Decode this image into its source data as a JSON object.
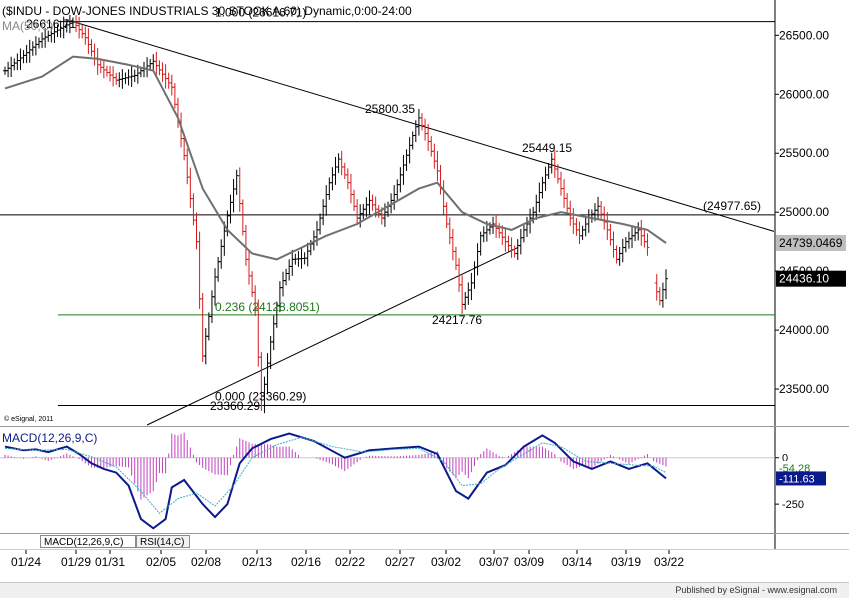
{
  "chart_data": [
    {
      "type": "candlestick",
      "title": "($INDU - DOW-JONES INDUSTRIALS 30 STOCK A,60) Dynamic,0:00-24:00",
      "indicator_label": "MA(50,C)",
      "copyright": "© eSignal, 2011",
      "ylim": [
        23195,
        26715
      ],
      "y_ticks": [
        "26500.00",
        "26000.00",
        "25500.00",
        "25000.00",
        "24500.00",
        "24000.00",
        "23500.00"
      ],
      "x_ticks": [
        "01/24",
        "01/29",
        "01/31",
        "02/05",
        "02/08",
        "02/13",
        "02/16",
        "02/22",
        "02/27",
        "03/02",
        "03/07",
        "03/09",
        "03/14",
        "03/19",
        "03/22"
      ],
      "price_path": [
        [
          0,
          26200
        ],
        [
          6,
          26330
        ],
        [
          12,
          26470
        ],
        [
          18,
          26560
        ],
        [
          22,
          26616.71
        ],
        [
          26,
          26480
        ],
        [
          30,
          26250
        ],
        [
          36,
          26120
        ],
        [
          42,
          26160
        ],
        [
          48,
          26280
        ],
        [
          54,
          26060
        ],
        [
          58,
          25480
        ],
        [
          62,
          24750
        ],
        [
          64,
          23780
        ],
        [
          68,
          24450
        ],
        [
          72,
          24970
        ],
        [
          75,
          25310
        ],
        [
          78,
          24600
        ],
        [
          81,
          24180
        ],
        [
          83,
          23360.29
        ],
        [
          86,
          23900
        ],
        [
          89,
          24360
        ],
        [
          93,
          24600
        ],
        [
          97,
          24610
        ],
        [
          101,
          24850
        ],
        [
          105,
          25250
        ],
        [
          108,
          25450
        ],
        [
          111,
          25250
        ],
        [
          114,
          24950
        ],
        [
          118,
          25100
        ],
        [
          122,
          24950
        ],
        [
          126,
          25150
        ],
        [
          129,
          25400
        ],
        [
          132,
          25650
        ],
        [
          134,
          25800.35
        ],
        [
          137,
          25600
        ],
        [
          140,
          25350
        ],
        [
          143,
          24900
        ],
        [
          146,
          24550
        ],
        [
          148,
          24217.76
        ],
        [
          151,
          24400
        ],
        [
          154,
          24800
        ],
        [
          158,
          24900
        ],
        [
          162,
          24750
        ],
        [
          165,
          24650
        ],
        [
          168,
          24850
        ],
        [
          171,
          25000
        ],
        [
          174,
          25250
        ],
        [
          177,
          25449.15
        ],
        [
          180,
          25200
        ],
        [
          183,
          24950
        ],
        [
          186,
          24800
        ],
        [
          189,
          24950
        ],
        [
          192,
          25050
        ],
        [
          195,
          24850
        ],
        [
          198,
          24600
        ],
        [
          201,
          24750
        ],
        [
          205,
          24850
        ],
        [
          208,
          24700
        ],
        [
          210,
          24400
        ],
        [
          212,
          24250
        ],
        [
          214,
          24436.1
        ]
      ],
      "ma_path": [
        [
          0,
          26050
        ],
        [
          12,
          26150
        ],
        [
          22,
          26320
        ],
        [
          30,
          26300
        ],
        [
          40,
          26250
        ],
        [
          48,
          26200
        ],
        [
          56,
          25800
        ],
        [
          64,
          25200
        ],
        [
          72,
          24850
        ],
        [
          80,
          24650
        ],
        [
          88,
          24600
        ],
        [
          96,
          24700
        ],
        [
          104,
          24800
        ],
        [
          114,
          24900
        ],
        [
          124,
          25050
        ],
        [
          134,
          25200
        ],
        [
          140,
          25250
        ],
        [
          148,
          25000
        ],
        [
          156,
          24900
        ],
        [
          164,
          24850
        ],
        [
          172,
          24950
        ],
        [
          180,
          25000
        ],
        [
          190,
          24950
        ],
        [
          200,
          24900
        ],
        [
          208,
          24850
        ],
        [
          214,
          24739.0469
        ]
      ],
      "lines": [
        {
          "label": "1.000 (26616.71)",
          "value": 26616.71,
          "x_from": 58,
          "x_to": 775,
          "color": "#000000"
        },
        {
          "label": "0.236 (24128.8051)",
          "value": 24128.8051,
          "x_from": 58,
          "x_to": 775,
          "color": "#1a7a1a"
        },
        {
          "label": "0.000 (23360.29)",
          "value": 23360.29,
          "x_from": 58,
          "x_to": 775,
          "color": "#000000"
        },
        {
          "label": "(24977.65)",
          "value": 24977.65,
          "x_from": 0,
          "x_to": 775,
          "color": "#000000"
        }
      ],
      "annotations": [
        {
          "text": "26616.71",
          "value": 26616.71
        },
        {
          "text": "25800.35",
          "value": 25800.35
        },
        {
          "text": "25449.15",
          "value": 25449.15
        },
        {
          "text": "24217.76",
          "value": 24217.76
        },
        {
          "text": "23360.29",
          "value": 23360.29
        }
      ],
      "trendlines": [
        {
          "from": [
            22,
            26616.71
          ],
          "to": [
            214,
            24820
          ]
        },
        {
          "from": [
            46,
            23195
          ],
          "to": [
            166,
            24700
          ]
        }
      ],
      "price_labels": [
        {
          "text": "24739.0469",
          "value": 24739.0469,
          "bg": "#bebebe",
          "color": "#000000"
        },
        {
          "text": "24436.10",
          "value": 24436.1,
          "bg": "#000000",
          "color": "#ffffff"
        }
      ]
    },
    {
      "type": "line",
      "title": "MACD(12,26,9,C)",
      "ylim": [
        -400,
        160
      ],
      "y_ticks": [
        "0",
        "-250"
      ],
      "series": [
        {
          "name": "MACD",
          "color": "#0a1a8c",
          "values": [
            [
              0,
              60
            ],
            [
              6,
              40
            ],
            [
              10,
              45
            ],
            [
              14,
              30
            ],
            [
              20,
              60
            ],
            [
              24,
              20
            ],
            [
              28,
              -30
            ],
            [
              32,
              -60
            ],
            [
              36,
              -80
            ],
            [
              40,
              -150
            ],
            [
              44,
              -330
            ],
            [
              48,
              -380
            ],
            [
              52,
              -330
            ],
            [
              54,
              -160
            ],
            [
              58,
              -120
            ],
            [
              64,
              -250
            ],
            [
              68,
              -320
            ],
            [
              72,
              -250
            ],
            [
              76,
              -30
            ],
            [
              80,
              50
            ],
            [
              86,
              100
            ],
            [
              92,
              130
            ],
            [
              100,
              90
            ],
            [
              110,
              0
            ],
            [
              118,
              40
            ],
            [
              126,
              50
            ],
            [
              134,
              60
            ],
            [
              140,
              20
            ],
            [
              146,
              -180
            ],
            [
              150,
              -220
            ],
            [
              156,
              -80
            ],
            [
              162,
              -40
            ],
            [
              168,
              60
            ],
            [
              174,
              120
            ],
            [
              178,
              80
            ],
            [
              184,
              -20
            ],
            [
              190,
              -60
            ],
            [
              196,
              -20
            ],
            [
              202,
              -60
            ],
            [
              208,
              -30
            ],
            [
              214,
              -111.63
            ]
          ]
        },
        {
          "name": "Signal",
          "color": "#3bb0c4",
          "values": [
            [
              0,
              50
            ],
            [
              10,
              40
            ],
            [
              20,
              45
            ],
            [
              28,
              5
            ],
            [
              36,
              -50
            ],
            [
              44,
              -180
            ],
            [
              50,
              -300
            ],
            [
              56,
              -220
            ],
            [
              62,
              -190
            ],
            [
              68,
              -260
            ],
            [
              74,
              -150
            ],
            [
              80,
              0
            ],
            [
              88,
              70
            ],
            [
              96,
              110
            ],
            [
              106,
              60
            ],
            [
              116,
              30
            ],
            [
              126,
              45
            ],
            [
              134,
              50
            ],
            [
              142,
              -20
            ],
            [
              148,
              -150
            ],
            [
              154,
              -140
            ],
            [
              160,
              -60
            ],
            [
              168,
              20
            ],
            [
              174,
              80
            ],
            [
              180,
              60
            ],
            [
              188,
              -20
            ],
            [
              196,
              -30
            ],
            [
              204,
              -40
            ],
            [
              210,
              -45
            ],
            [
              214,
              -80
            ]
          ]
        }
      ],
      "price_labels": [
        {
          "text": "-54.28",
          "value": -54.28,
          "bg": "#ffffff",
          "color": "#1a7a1a"
        },
        {
          "text": "-111.63",
          "value": -111.63,
          "bg": "#0a1a8c",
          "color": "#ffffff"
        }
      ]
    }
  ],
  "tabs": [
    {
      "label": "MACD(12,26,9,C)",
      "active": true
    },
    {
      "label": "RSI(14,C)",
      "active": false
    }
  ],
  "footer": "Published by eSignal - www.esignal.com"
}
